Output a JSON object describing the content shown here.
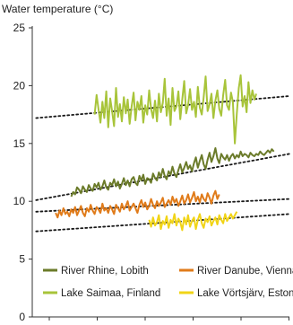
{
  "chart_data": {
    "type": "line",
    "title": "Water temperature (°C)",
    "ylim": [
      0,
      25
    ],
    "yticks": [
      0,
      5,
      10,
      15,
      20,
      25
    ],
    "xlim": [
      1888,
      2020
    ],
    "grid": false,
    "legend": "bottom, inside plot",
    "series": [
      {
        "name": "River Rhine, Lobith",
        "color": "#6b7b2a",
        "x_start": 1908,
        "values": [
          10.4,
          10.8,
          10.6,
          11.2,
          11.0,
          10.7,
          11.3,
          11.0,
          10.8,
          11.4,
          11.1,
          10.9,
          11.5,
          11.2,
          11.6,
          11.0,
          11.3,
          11.8,
          11.2,
          11.0,
          11.6,
          11.4,
          11.9,
          11.3,
          11.7,
          11.1,
          11.5,
          12.0,
          11.4,
          11.8,
          11.3,
          11.9,
          12.1,
          11.6,
          11.4,
          12.2,
          11.8,
          12.3,
          11.5,
          12.0,
          11.9,
          11.6,
          12.4,
          12.0,
          11.8,
          12.5,
          12.1,
          12.8,
          12.2,
          11.9,
          12.6,
          12.3,
          13.0,
          12.4,
          12.1,
          12.7,
          13.2,
          12.5,
          12.9,
          13.4,
          12.8,
          13.1,
          12.6,
          13.3,
          13.8,
          12.9,
          13.5,
          14.0,
          13.2,
          12.8,
          13.6,
          14.2,
          13.4,
          13.9,
          14.6,
          13.7,
          13.3,
          14.1,
          13.8,
          13.6,
          14.0,
          13.5,
          13.9,
          14.1,
          13.7,
          14.0,
          13.8,
          14.3,
          13.9,
          14.1,
          14.0,
          13.8,
          14.2,
          14.0,
          13.9,
          14.1,
          14.0,
          14.3,
          14.1,
          14.0,
          14.2,
          14.4,
          14.2,
          14.5,
          14.3
        ]
      },
      {
        "name": "River Danube, Vienna",
        "color": "#e07b1a",
        "x_start": 1900,
        "values": [
          9.0,
          8.6,
          9.2,
          8.8,
          9.4,
          8.9,
          9.1,
          8.7,
          9.3,
          9.0,
          9.5,
          8.8,
          9.2,
          9.6,
          9.0,
          8.7,
          9.4,
          9.1,
          9.7,
          9.2,
          8.9,
          9.5,
          9.3,
          9.0,
          9.8,
          9.2,
          9.4,
          9.0,
          9.6,
          9.3,
          8.9,
          9.7,
          9.4,
          9.1,
          9.8,
          9.3,
          9.6,
          10.0,
          9.2,
          9.5,
          9.8,
          9.4,
          9.0,
          9.7,
          10.1,
          9.5,
          9.9,
          9.3,
          9.6,
          10.2,
          9.7,
          9.4,
          10.0,
          9.6,
          9.9,
          10.3,
          9.5,
          9.8,
          10.1,
          9.7,
          10.4,
          9.9,
          10.2,
          9.6,
          10.0,
          10.5,
          9.8,
          10.1,
          10.6,
          9.9,
          10.3,
          10.8,
          10.0,
          10.4,
          9.9,
          10.6,
          10.2,
          10.0,
          10.7,
          10.3,
          9.8,
          10.5,
          10.9,
          10.2,
          10.6
        ]
      },
      {
        "name": "Lake Saimaa, Finland",
        "color": "#a8c43a",
        "x_start": 1920,
        "values": [
          17.5,
          19.2,
          18.0,
          16.8,
          18.6,
          17.2,
          19.5,
          16.4,
          18.9,
          17.8,
          16.5,
          19.8,
          17.3,
          18.4,
          16.9,
          19.0,
          17.6,
          18.8,
          16.7,
          18.2,
          19.4,
          17.0,
          18.6,
          17.9,
          19.1,
          16.8,
          18.3,
          17.5,
          19.6,
          18.0,
          17.2,
          18.7,
          16.9,
          19.3,
          17.7,
          18.5,
          20.6,
          17.4,
          18.9,
          16.6,
          19.8,
          17.8,
          18.2,
          19.5,
          17.1,
          18.8,
          20.4,
          17.6,
          18.3,
          19.7,
          17.9,
          18.6,
          17.3,
          19.9,
          18.1,
          17.5,
          19.0,
          20.8,
          17.8,
          18.4,
          19.3,
          17.2,
          18.7,
          19.6,
          18.0,
          17.4,
          19.2,
          20.5,
          18.3,
          17.9,
          19.4,
          18.6,
          15.0,
          17.6,
          19.8,
          20.9,
          18.2,
          19.1,
          17.7,
          20.3,
          18.5,
          19.6,
          18.8,
          19.3
        ]
      },
      {
        "name": "Lake Vörtsjärv, Estonia",
        "color": "#f1d417",
        "x_start": 1948,
        "values": [
          8.4,
          7.8,
          8.6,
          7.9,
          8.2,
          8.8,
          7.6,
          8.3,
          8.0,
          8.7,
          7.7,
          8.4,
          8.1,
          8.9,
          7.9,
          8.5,
          8.2,
          7.5,
          8.6,
          8.0,
          8.8,
          7.8,
          8.3,
          8.6,
          7.6,
          8.4,
          8.9,
          8.1,
          7.7,
          8.5,
          8.2,
          8.7,
          7.9,
          8.3,
          8.6,
          8.0,
          8.8,
          8.4,
          8.1,
          8.9,
          8.3,
          8.6,
          8.9,
          8.5,
          8.8,
          9.1
        ]
      }
    ],
    "trendlines": [
      {
        "series": "River Rhine, Lobith",
        "x": [
          1890,
          2020
        ],
        "y": [
          10.1,
          14.1
        ]
      },
      {
        "series": "River Danube, Vienna",
        "x": [
          1890,
          2020
        ],
        "y": [
          9.1,
          10.2
        ]
      },
      {
        "series": "Lake Saimaa, Finland",
        "x": [
          1890,
          2020
        ],
        "y": [
          17.2,
          19.1
        ]
      },
      {
        "series": "Lake Vörtsjärv, Estonia",
        "x": [
          1890,
          2020
        ],
        "y": [
          7.4,
          8.9
        ]
      }
    ]
  }
}
